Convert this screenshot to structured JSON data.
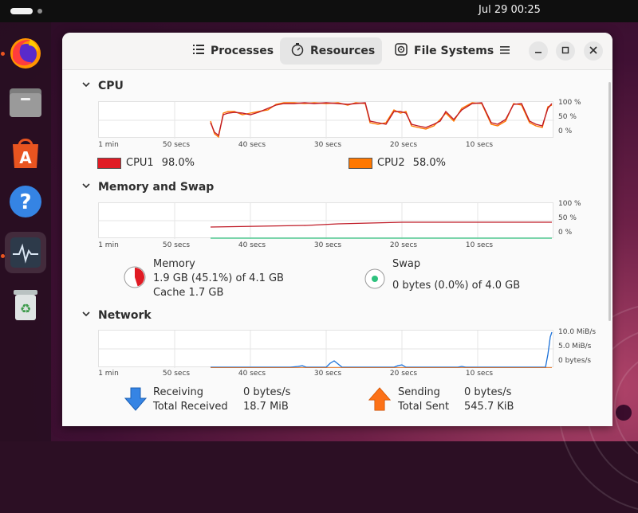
{
  "topbar": {
    "clock": "Jul 29  00:25"
  },
  "dock": {
    "items": [
      {
        "name": "firefox-icon"
      },
      {
        "name": "files-icon"
      },
      {
        "name": "app-center-icon"
      },
      {
        "name": "help-icon"
      },
      {
        "name": "system-monitor-icon"
      },
      {
        "name": "trash-icon"
      }
    ]
  },
  "window": {
    "tabs": [
      {
        "label": "Processes",
        "icon": "list-icon"
      },
      {
        "label": "Resources",
        "icon": "gauge-icon"
      },
      {
        "label": "File Systems",
        "icon": "disk-icon"
      }
    ],
    "active_tab": "Resources"
  },
  "cpu": {
    "title": "CPU",
    "y_labels": [
      "100 %",
      "50 %",
      "0 %"
    ],
    "x_labels": [
      "1 min",
      "50 secs",
      "40 secs",
      "30 secs",
      "20 secs",
      "10 secs"
    ],
    "cpu1": {
      "label": "CPU1",
      "value": "98.0%",
      "color": "#e01b24"
    },
    "cpu2": {
      "label": "CPU2",
      "value": "58.0%",
      "color": "#ff7800"
    }
  },
  "memory": {
    "title": "Memory and Swap",
    "y_labels": [
      "100 %",
      "50 %",
      "0 %"
    ],
    "x_labels": [
      "1 min",
      "50 secs",
      "40 secs",
      "30 secs",
      "20 secs",
      "10 secs"
    ],
    "mem_label": "Memory",
    "mem_used": "1.9 GB (45.1%) of 4.1 GB",
    "mem_cache": "Cache 1.7 GB",
    "mem_fraction": 0.451,
    "mem_color": "#e01b24",
    "swap_label": "Swap",
    "swap_used": "0 bytes (0.0%) of 4.0 GB",
    "swap_fraction": 0.0,
    "swap_color": "#2ec27e"
  },
  "network": {
    "title": "Network",
    "y_labels": [
      "10.0 MiB/s",
      "5.0 MiB/s",
      "0 bytes/s"
    ],
    "x_labels": [
      "1 min",
      "50 secs",
      "40 secs",
      "30 secs",
      "20 secs",
      "10 secs"
    ],
    "receiving_label": "Receiving",
    "receiving_value": "0 bytes/s",
    "total_received_label": "Total Received",
    "total_received_value": "18.7 MiB",
    "sending_label": "Sending",
    "sending_value": "0 bytes/s",
    "total_sent_label": "Total Sent",
    "total_sent_value": "545.7 KiB",
    "receive_color": "#1c71d8",
    "send_color": "#e66100"
  }
}
